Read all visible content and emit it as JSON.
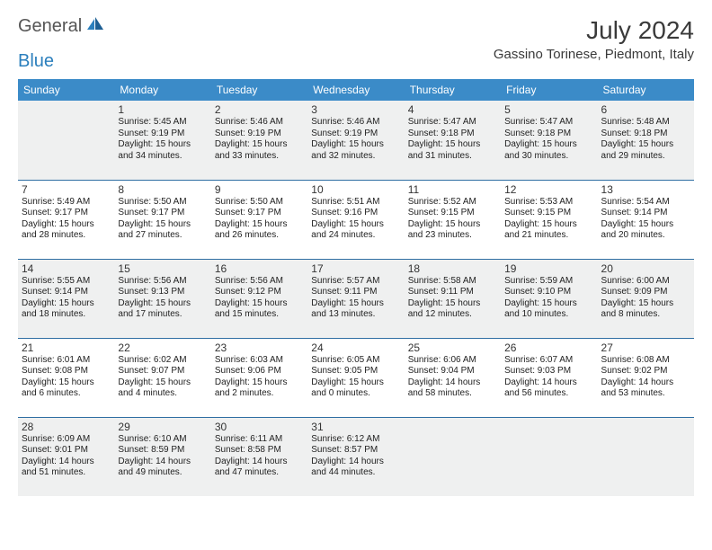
{
  "header": {
    "logo_part1": "General",
    "logo_part2": "Blue",
    "month_title": "July 2024",
    "location": "Gassino Torinese, Piedmont, Italy"
  },
  "colors": {
    "header_bg": "#3b8bc8",
    "header_text": "#ffffff",
    "row_alt_bg": "#eff0f0",
    "row_bg": "#ffffff",
    "border": "#2f6ea3",
    "logo_accent": "#2b7fbd",
    "logo_gray": "#555555",
    "text": "#222222"
  },
  "weekdays": [
    "Sunday",
    "Monday",
    "Tuesday",
    "Wednesday",
    "Thursday",
    "Friday",
    "Saturday"
  ],
  "weeks": [
    [
      null,
      {
        "d": "1",
        "sr": "5:45 AM",
        "ss": "9:19 PM",
        "dl": "15 hours and 34 minutes."
      },
      {
        "d": "2",
        "sr": "5:46 AM",
        "ss": "9:19 PM",
        "dl": "15 hours and 33 minutes."
      },
      {
        "d": "3",
        "sr": "5:46 AM",
        "ss": "9:19 PM",
        "dl": "15 hours and 32 minutes."
      },
      {
        "d": "4",
        "sr": "5:47 AM",
        "ss": "9:18 PM",
        "dl": "15 hours and 31 minutes."
      },
      {
        "d": "5",
        "sr": "5:47 AM",
        "ss": "9:18 PM",
        "dl": "15 hours and 30 minutes."
      },
      {
        "d": "6",
        "sr": "5:48 AM",
        "ss": "9:18 PM",
        "dl": "15 hours and 29 minutes."
      }
    ],
    [
      {
        "d": "7",
        "sr": "5:49 AM",
        "ss": "9:17 PM",
        "dl": "15 hours and 28 minutes."
      },
      {
        "d": "8",
        "sr": "5:50 AM",
        "ss": "9:17 PM",
        "dl": "15 hours and 27 minutes."
      },
      {
        "d": "9",
        "sr": "5:50 AM",
        "ss": "9:17 PM",
        "dl": "15 hours and 26 minutes."
      },
      {
        "d": "10",
        "sr": "5:51 AM",
        "ss": "9:16 PM",
        "dl": "15 hours and 24 minutes."
      },
      {
        "d": "11",
        "sr": "5:52 AM",
        "ss": "9:15 PM",
        "dl": "15 hours and 23 minutes."
      },
      {
        "d": "12",
        "sr": "5:53 AM",
        "ss": "9:15 PM",
        "dl": "15 hours and 21 minutes."
      },
      {
        "d": "13",
        "sr": "5:54 AM",
        "ss": "9:14 PM",
        "dl": "15 hours and 20 minutes."
      }
    ],
    [
      {
        "d": "14",
        "sr": "5:55 AM",
        "ss": "9:14 PM",
        "dl": "15 hours and 18 minutes."
      },
      {
        "d": "15",
        "sr": "5:56 AM",
        "ss": "9:13 PM",
        "dl": "15 hours and 17 minutes."
      },
      {
        "d": "16",
        "sr": "5:56 AM",
        "ss": "9:12 PM",
        "dl": "15 hours and 15 minutes."
      },
      {
        "d": "17",
        "sr": "5:57 AM",
        "ss": "9:11 PM",
        "dl": "15 hours and 13 minutes."
      },
      {
        "d": "18",
        "sr": "5:58 AM",
        "ss": "9:11 PM",
        "dl": "15 hours and 12 minutes."
      },
      {
        "d": "19",
        "sr": "5:59 AM",
        "ss": "9:10 PM",
        "dl": "15 hours and 10 minutes."
      },
      {
        "d": "20",
        "sr": "6:00 AM",
        "ss": "9:09 PM",
        "dl": "15 hours and 8 minutes."
      }
    ],
    [
      {
        "d": "21",
        "sr": "6:01 AM",
        "ss": "9:08 PM",
        "dl": "15 hours and 6 minutes."
      },
      {
        "d": "22",
        "sr": "6:02 AM",
        "ss": "9:07 PM",
        "dl": "15 hours and 4 minutes."
      },
      {
        "d": "23",
        "sr": "6:03 AM",
        "ss": "9:06 PM",
        "dl": "15 hours and 2 minutes."
      },
      {
        "d": "24",
        "sr": "6:05 AM",
        "ss": "9:05 PM",
        "dl": "15 hours and 0 minutes."
      },
      {
        "d": "25",
        "sr": "6:06 AM",
        "ss": "9:04 PM",
        "dl": "14 hours and 58 minutes."
      },
      {
        "d": "26",
        "sr": "6:07 AM",
        "ss": "9:03 PM",
        "dl": "14 hours and 56 minutes."
      },
      {
        "d": "27",
        "sr": "6:08 AM",
        "ss": "9:02 PM",
        "dl": "14 hours and 53 minutes."
      }
    ],
    [
      {
        "d": "28",
        "sr": "6:09 AM",
        "ss": "9:01 PM",
        "dl": "14 hours and 51 minutes."
      },
      {
        "d": "29",
        "sr": "6:10 AM",
        "ss": "8:59 PM",
        "dl": "14 hours and 49 minutes."
      },
      {
        "d": "30",
        "sr": "6:11 AM",
        "ss": "8:58 PM",
        "dl": "14 hours and 47 minutes."
      },
      {
        "d": "31",
        "sr": "6:12 AM",
        "ss": "8:57 PM",
        "dl": "14 hours and 44 minutes."
      },
      null,
      null,
      null
    ]
  ],
  "labels": {
    "sunrise_prefix": "Sunrise: ",
    "sunset_prefix": "Sunset: ",
    "daylight_prefix": "Daylight: "
  }
}
